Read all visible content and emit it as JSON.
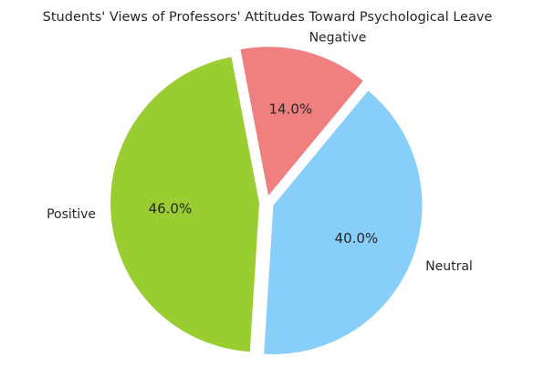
{
  "chart_data": {
    "type": "pie",
    "title": "Students' Views of Professors' Attitudes Toward Psychological Leave",
    "start_angle_deg": 140,
    "direction": "clockwise-from-neutral",
    "exploded": true,
    "slices": [
      {
        "label": "Neutral",
        "value": 40.0,
        "pct_label": "40.0%",
        "color": "#87CEFA"
      },
      {
        "label": "Negative",
        "value": 14.0,
        "pct_label": "14.0%",
        "color": "#F08080"
      },
      {
        "label": "Positive",
        "value": 46.0,
        "pct_label": "46.0%",
        "color": "#9ACD32"
      }
    ]
  }
}
